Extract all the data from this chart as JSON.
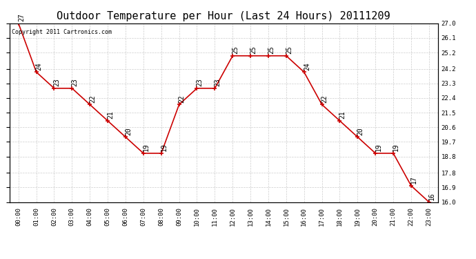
{
  "title": "Outdoor Temperature per Hour (Last 24 Hours) 20111209",
  "copyright_text": "Copyright 2011 Cartronics.com",
  "hours": [
    "00:00",
    "01:00",
    "02:00",
    "03:00",
    "04:00",
    "05:00",
    "06:00",
    "07:00",
    "08:00",
    "09:00",
    "10:00",
    "11:00",
    "12:00",
    "13:00",
    "14:00",
    "15:00",
    "16:00",
    "17:00",
    "18:00",
    "19:00",
    "20:00",
    "21:00",
    "22:00",
    "23:00"
  ],
  "values": [
    27,
    24,
    23,
    23,
    22,
    21,
    20,
    19,
    19,
    22,
    23,
    23,
    25,
    25,
    25,
    25,
    24,
    22,
    21,
    20,
    19,
    19,
    17,
    16
  ],
  "ylim": [
    16.0,
    27.0
  ],
  "yticks": [
    27.0,
    26.1,
    25.2,
    24.2,
    23.3,
    22.4,
    21.5,
    20.6,
    19.7,
    18.8,
    17.8,
    16.9,
    16.0
  ],
  "line_color": "#cc0000",
  "bg_color": "#ffffff",
  "grid_color": "#cccccc",
  "title_fontsize": 11,
  "annot_fontsize": 7,
  "tick_fontsize": 6.5
}
